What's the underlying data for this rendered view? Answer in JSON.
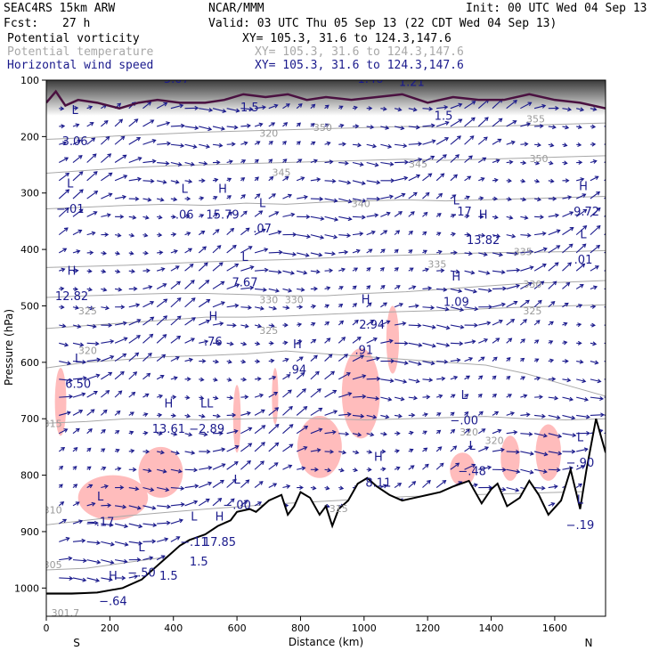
{
  "header": {
    "model": "SEAC4RS 15km ARW",
    "org": "NCAR/MMM",
    "init": "Init: 00 UTC Wed 04 Sep 13",
    "fcst_label": "Fcst:",
    "fcst_value": "27 h",
    "valid": "Valid: 03 UTC Thu 05 Sep 13 (22 CDT Wed 04 Sep 13)"
  },
  "fields": [
    {
      "name": "Potential vorticity",
      "xy": "XY= 105.3, 31.6 to 124.3,147.6",
      "color": "#000000"
    },
    {
      "name": "Potential temperature",
      "xy": "XY= 105.3, 31.6 to 124.3,147.6",
      "color": "#a8a8a8"
    },
    {
      "name": "Horizontal wind speed",
      "xy": "XY= 105.3, 31.6 to 124.3,147.6",
      "color": "#1a1a8c"
    }
  ],
  "chart_data": {
    "type": "cross-section",
    "xlabel": "Distance (km)",
    "ylabel": "Pressure (hPa)",
    "xlim": [
      0,
      1760
    ],
    "ylim": [
      1050,
      100
    ],
    "x_ticks": [
      0,
      200,
      400,
      600,
      800,
      1000,
      1200,
      1400,
      1600
    ],
    "y_ticks": [
      100,
      200,
      300,
      400,
      500,
      600,
      700,
      800,
      900,
      1000
    ],
    "end_labels": {
      "left": "S",
      "right": "N"
    },
    "colors": {
      "wind": "#1a1a8c",
      "theta": "#a8a8a8",
      "pv": "#ffb8b8",
      "terrain": "#000000",
      "tropopause": "#4a1040"
    },
    "terrain": [
      [
        0,
        1010
      ],
      [
        80,
        1010
      ],
      [
        160,
        1008
      ],
      [
        240,
        1000
      ],
      [
        300,
        985
      ],
      [
        340,
        965
      ],
      [
        380,
        945
      ],
      [
        420,
        925
      ],
      [
        450,
        915
      ],
      [
        500,
        905
      ],
      [
        540,
        890
      ],
      [
        580,
        880
      ],
      [
        600,
        865
      ],
      [
        640,
        860
      ],
      [
        660,
        865
      ],
      [
        700,
        845
      ],
      [
        740,
        835
      ],
      [
        760,
        870
      ],
      [
        780,
        855
      ],
      [
        800,
        830
      ],
      [
        830,
        840
      ],
      [
        860,
        870
      ],
      [
        880,
        855
      ],
      [
        900,
        890
      ],
      [
        920,
        860
      ],
      [
        950,
        845
      ],
      [
        980,
        815
      ],
      [
        1010,
        805
      ],
      [
        1040,
        820
      ],
      [
        1080,
        835
      ],
      [
        1120,
        845
      ],
      [
        1160,
        840
      ],
      [
        1200,
        835
      ],
      [
        1240,
        830
      ],
      [
        1280,
        820
      ],
      [
        1330,
        810
      ],
      [
        1370,
        850
      ],
      [
        1400,
        825
      ],
      [
        1420,
        815
      ],
      [
        1450,
        855
      ],
      [
        1490,
        840
      ],
      [
        1520,
        810
      ],
      [
        1550,
        835
      ],
      [
        1580,
        870
      ],
      [
        1620,
        845
      ],
      [
        1650,
        790
      ],
      [
        1680,
        860
      ],
      [
        1700,
        790
      ],
      [
        1730,
        700
      ],
      [
        1760,
        760
      ]
    ],
    "tropopause": [
      [
        0,
        140
      ],
      [
        30,
        120
      ],
      [
        60,
        145
      ],
      [
        100,
        135
      ],
      [
        160,
        140
      ],
      [
        230,
        150
      ],
      [
        290,
        140
      ],
      [
        350,
        135
      ],
      [
        420,
        140
      ],
      [
        500,
        140
      ],
      [
        560,
        135
      ],
      [
        620,
        125
      ],
      [
        690,
        130
      ],
      [
        760,
        125
      ],
      [
        820,
        135
      ],
      [
        880,
        130
      ],
      [
        960,
        135
      ],
      [
        1040,
        130
      ],
      [
        1120,
        125
      ],
      [
        1200,
        140
      ],
      [
        1280,
        130
      ],
      [
        1360,
        135
      ],
      [
        1440,
        135
      ],
      [
        1520,
        125
      ],
      [
        1600,
        135
      ],
      [
        1680,
        140
      ],
      [
        1760,
        150
      ]
    ],
    "theta_contours": [
      {
        "label": "301.7",
        "p": [
          1008,
          1008,
          1005,
          1000,
          995,
          990,
          985,
          982,
          980,
          978,
          975,
          973,
          970,
          968,
          966
        ]
      },
      {
        "label": "305",
        "p": [
          968,
          965,
          955,
          945,
          935,
          925,
          915,
          910,
          905,
          900,
          895,
          890,
          888,
          885,
          882
        ]
      },
      {
        "label": "310",
        "p": [
          888,
          880,
          872,
          866,
          860,
          855,
          850,
          846,
          842,
          838,
          836,
          834,
          832,
          830,
          828
        ]
      },
      {
        "label": "315",
        "p": [
          708,
          705,
          700,
          700,
          702,
          700,
          698,
          700,
          702,
          700,
          698,
          696,
          700,
          702,
          700
        ]
      },
      {
        "label": "320",
        "p": [
          610,
          600,
          595,
          590,
          588,
          585,
          580,
          585,
          590,
          595,
          600,
          605,
          620,
          640,
          660
        ]
      },
      {
        "label": "325",
        "p": [
          540,
          535,
          530,
          525,
          520,
          520,
          518,
          515,
          512,
          510,
          508,
          505,
          502,
          500,
          498
        ]
      },
      {
        "label": "330",
        "p": [
          485,
          482,
          480,
          478,
          478,
          480,
          482,
          482,
          478,
          475,
          470,
          465,
          460,
          458,
          455
        ]
      },
      {
        "label": "335",
        "p": [
          432,
          430,
          428,
          425,
          422,
          420,
          418,
          415,
          412,
          410,
          408,
          406,
          405,
          404,
          402
        ]
      },
      {
        "label": "340",
        "p": [
          328,
          325,
          322,
          320,
          322,
          318,
          320,
          316,
          314,
          312,
          314,
          312,
          310,
          308,
          306
        ]
      },
      {
        "label": "345",
        "p": [
          265,
          260,
          255,
          252,
          250,
          248,
          246,
          244,
          242,
          240,
          242,
          240,
          238,
          236,
          234
        ]
      },
      {
        "label": "350",
        "p": [
          205,
          202,
          198,
          195,
          192,
          190,
          188,
          186,
          184,
          182,
          184,
          182,
          180,
          178,
          176
        ]
      }
    ],
    "pv_blobs": [
      {
        "x": 45,
        "p": 670,
        "rx": 18,
        "rp": 60
      },
      {
        "x": 210,
        "p": 840,
        "rx": 110,
        "rp": 40
      },
      {
        "x": 360,
        "p": 795,
        "rx": 70,
        "rp": 45
      },
      {
        "x": 600,
        "p": 700,
        "rx": 12,
        "rp": 60
      },
      {
        "x": 720,
        "p": 660,
        "rx": 10,
        "rp": 50
      },
      {
        "x": 860,
        "p": 750,
        "rx": 70,
        "rp": 55
      },
      {
        "x": 990,
        "p": 655,
        "rx": 60,
        "rp": 80
      },
      {
        "x": 1090,
        "p": 560,
        "rx": 20,
        "rp": 60
      },
      {
        "x": 1310,
        "p": 790,
        "rx": 40,
        "rp": 30
      },
      {
        "x": 1460,
        "p": 770,
        "rx": 30,
        "rp": 40
      },
      {
        "x": 1580,
        "p": 760,
        "rx": 40,
        "rp": 50
      }
    ],
    "annotations": [
      {
        "x": 90,
        "p": 160,
        "text": "L",
        "c": "ann"
      },
      {
        "x": 90,
        "p": 215,
        "text": "3.06",
        "c": "ann"
      },
      {
        "x": 75,
        "p": 290,
        "text": "L",
        "c": "ann"
      },
      {
        "x": 75,
        "p": 335,
        "text": "−.01",
        "c": "ann"
      },
      {
        "x": 80,
        "p": 445,
        "text": "H",
        "c": "ann"
      },
      {
        "x": 80,
        "p": 490,
        "text": "12.82",
        "c": "ann"
      },
      {
        "x": 100,
        "p": 600,
        "text": "L",
        "c": "ann"
      },
      {
        "x": 100,
        "p": 645,
        "text": "6.50",
        "c": "ann"
      },
      {
        "x": 170,
        "p": 845,
        "text": "L",
        "c": "ann"
      },
      {
        "x": 170,
        "p": 890,
        "text": "−.17",
        "c": "ann"
      },
      {
        "x": 300,
        "p": 935,
        "text": "L",
        "c": "ann"
      },
      {
        "x": 300,
        "p": 980,
        "text": "−.50",
        "c": "ann"
      },
      {
        "x": 210,
        "p": 985,
        "text": "H",
        "c": "ann"
      },
      {
        "x": 210,
        "p": 1030,
        "text": "−.64",
        "c": "ann"
      },
      {
        "x": 385,
        "p": 680,
        "text": "H",
        "c": "ann"
      },
      {
        "x": 385,
        "p": 725,
        "text": "13.61",
        "c": "ann"
      },
      {
        "x": 465,
        "p": 880,
        "text": "L",
        "c": "ann"
      },
      {
        "x": 465,
        "p": 925,
        "text": "−.11",
        "c": "ann"
      },
      {
        "x": 545,
        "p": 880,
        "text": "H",
        "c": "ann"
      },
      {
        "x": 545,
        "p": 925,
        "text": "17.85",
        "c": "ann"
      },
      {
        "x": 505,
        "p": 680,
        "text": "LL",
        "c": "ann"
      },
      {
        "x": 505,
        "p": 725,
        "text": "−2.89",
        "c": "ann"
      },
      {
        "x": 525,
        "p": 525,
        "text": "H",
        "c": "ann"
      },
      {
        "x": 525,
        "p": 570,
        "text": ".76",
        "c": "ann"
      },
      {
        "x": 435,
        "p": 300,
        "text": "L",
        "c": "ann"
      },
      {
        "x": 435,
        "p": 345,
        "text": ".06",
        "c": "ann"
      },
      {
        "x": 555,
        "p": 300,
        "text": "H",
        "c": "ann"
      },
      {
        "x": 555,
        "p": 345,
        "text": "15.79",
        "c": "ann"
      },
      {
        "x": 680,
        "p": 325,
        "text": "L",
        "c": "ann"
      },
      {
        "x": 680,
        "p": 370,
        "text": ".07",
        "c": "ann"
      },
      {
        "x": 625,
        "p": 420,
        "text": "L",
        "c": "ann"
      },
      {
        "x": 625,
        "p": 465,
        "text": "7.67",
        "c": "ann"
      },
      {
        "x": 600,
        "p": 815,
        "text": "L",
        "c": "ann"
      },
      {
        "x": 600,
        "p": 860,
        "text": "−.00",
        "c": "ann"
      },
      {
        "x": 790,
        "p": 575,
        "text": "H",
        "c": "ann"
      },
      {
        "x": 790,
        "p": 620,
        "text": ".94",
        "c": "ann"
      },
      {
        "x": 1005,
        "p": 495,
        "text": "H",
        "c": "ann"
      },
      {
        "x": 1025,
        "p": 540,
        "text": "2.94",
        "c": "ann"
      },
      {
        "x": 1000,
        "p": 585,
        "text": ".91",
        "c": "ann"
      },
      {
        "x": 1045,
        "p": 775,
        "text": "H",
        "c": "ann"
      },
      {
        "x": 1045,
        "p": 820,
        "text": "8.11",
        "c": "ann"
      },
      {
        "x": 1290,
        "p": 455,
        "text": "H",
        "c": "ann"
      },
      {
        "x": 1290,
        "p": 500,
        "text": "1.09",
        "c": "ann"
      },
      {
        "x": 1290,
        "p": 320,
        "text": "L",
        "c": "ann"
      },
      {
        "x": 1310,
        "p": 340,
        "text": ".17",
        "c": "ann"
      },
      {
        "x": 1375,
        "p": 345,
        "text": "H",
        "c": "ann"
      },
      {
        "x": 1375,
        "p": 390,
        "text": "13.82",
        "c": "ann"
      },
      {
        "x": 1315,
        "p": 665,
        "text": "L",
        "c": "ann"
      },
      {
        "x": 1315,
        "p": 710,
        "text": "−.00",
        "c": "ann"
      },
      {
        "x": 1340,
        "p": 755,
        "text": "L",
        "c": "ann"
      },
      {
        "x": 1340,
        "p": 800,
        "text": "−.48",
        "c": "ann"
      },
      {
        "x": 1690,
        "p": 295,
        "text": "H",
        "c": "ann"
      },
      {
        "x": 1700,
        "p": 340,
        "text": "9.72",
        "c": "ann"
      },
      {
        "x": 1690,
        "p": 380,
        "text": "L",
        "c": "ann"
      },
      {
        "x": 1690,
        "p": 425,
        "text": ".01",
        "c": "ann"
      },
      {
        "x": 1680,
        "p": 740,
        "text": "L",
        "c": "ann"
      },
      {
        "x": 1680,
        "p": 785,
        "text": "−.90",
        "c": "ann"
      },
      {
        "x": 1680,
        "p": 850,
        "text": "L",
        "c": "ann"
      },
      {
        "x": 1680,
        "p": 895,
        "text": "−.19",
        "c": "ann"
      },
      {
        "x": 360,
        "p": 90,
        "text": "H",
        "c": "ann"
      },
      {
        "x": 410,
        "p": 105,
        "text": "5.07",
        "c": "ann"
      },
      {
        "x": 1250,
        "p": 170,
        "text": "1.5",
        "c": "ann"
      },
      {
        "x": 640,
        "p": 155,
        "text": "1.5",
        "c": "ann"
      },
      {
        "x": 1020,
        "p": 105,
        "text": "1.46",
        "c": "ann"
      },
      {
        "x": 1150,
        "p": 110,
        "text": "1.21",
        "c": "ann"
      },
      {
        "x": 480,
        "p": 960,
        "text": "1.5",
        "c": "ann"
      },
      {
        "x": 385,
        "p": 985,
        "text": "1.5",
        "c": "ann"
      },
      {
        "x": 20,
        "p": 868,
        "text": "310",
        "c": "ann-grey"
      },
      {
        "x": 20,
        "p": 965,
        "text": "305",
        "c": "ann-grey"
      },
      {
        "x": 60,
        "p": 1050,
        "text": "301.7",
        "c": "ann-grey"
      },
      {
        "x": 20,
        "p": 715,
        "text": "315",
        "c": "ann-grey"
      },
      {
        "x": 130,
        "p": 585,
        "text": "320",
        "c": "ann-grey"
      },
      {
        "x": 130,
        "p": 515,
        "text": "325",
        "c": "ann-grey"
      },
      {
        "x": 700,
        "p": 495,
        "text": "330",
        "c": "ann-grey"
      },
      {
        "x": 780,
        "p": 495,
        "text": "330",
        "c": "ann-grey"
      },
      {
        "x": 700,
        "p": 550,
        "text": "325",
        "c": "ann-grey"
      },
      {
        "x": 1530,
        "p": 515,
        "text": "325",
        "c": "ann-grey"
      },
      {
        "x": 1230,
        "p": 432,
        "text": "335",
        "c": "ann-grey"
      },
      {
        "x": 1500,
        "p": 410,
        "text": "335",
        "c": "ann-grey"
      },
      {
        "x": 1530,
        "p": 468,
        "text": "330",
        "c": "ann-grey"
      },
      {
        "x": 990,
        "p": 325,
        "text": "340",
        "c": "ann-grey"
      },
      {
        "x": 740,
        "p": 270,
        "text": "345",
        "c": "ann-grey"
      },
      {
        "x": 1170,
        "p": 255,
        "text": "345",
        "c": "ann-grey"
      },
      {
        "x": 870,
        "p": 190,
        "text": "350",
        "c": "ann-grey"
      },
      {
        "x": 700,
        "p": 200,
        "text": "320",
        "c": "ann-grey"
      },
      {
        "x": 1550,
        "p": 245,
        "text": "350",
        "c": "ann-grey"
      },
      {
        "x": 1540,
        "p": 175,
        "text": "355",
        "c": "ann-grey"
      },
      {
        "x": 1330,
        "p": 730,
        "text": "320",
        "c": "ann-grey"
      },
      {
        "x": 1410,
        "p": 745,
        "text": "320",
        "c": "ann-grey"
      },
      {
        "x": 920,
        "p": 865,
        "text": "315",
        "c": "ann-grey"
      }
    ]
  }
}
